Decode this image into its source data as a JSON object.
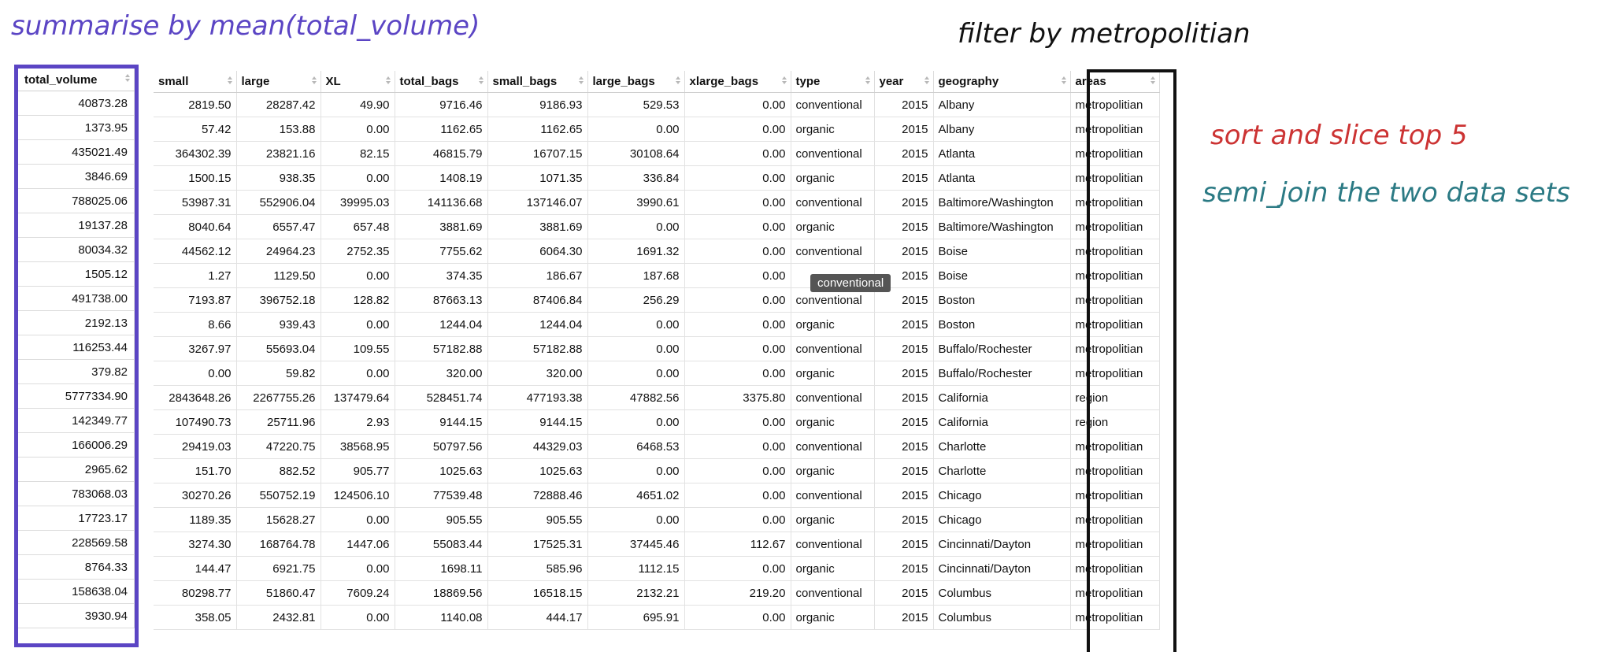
{
  "annotations": {
    "summarise": "summarise by mean(total_volume)",
    "filter": "filter by metropolitian",
    "sort": "sort and slice top 5",
    "semi_join": "semi_join the two data sets"
  },
  "colors": {
    "summarise_border": "#5b45c4",
    "areas_border": "#111111",
    "sort_note": "#cc3333",
    "semi_join_note": "#2b7a84"
  },
  "left_table": {
    "header": "total_volume",
    "rows": [
      "40873.28",
      "1373.95",
      "435021.49",
      "3846.69",
      "788025.06",
      "19137.28",
      "80034.32",
      "1505.12",
      "491738.00",
      "2192.13",
      "116253.44",
      "379.82",
      "5777334.90",
      "142349.77",
      "166006.29",
      "2965.62",
      "783068.03",
      "17723.17",
      "228569.58",
      "8764.33",
      "158638.04",
      "3930.94"
    ]
  },
  "main_table": {
    "columns": [
      "small",
      "large",
      "XL",
      "total_bags",
      "small_bags",
      "large_bags",
      "xlarge_bags",
      "type",
      "year",
      "geography",
      "areas"
    ],
    "rows": [
      [
        "2819.50",
        "28287.42",
        "49.90",
        "9716.46",
        "9186.93",
        "529.53",
        "0.00",
        "conventional",
        "2015",
        "Albany",
        "metropolitian"
      ],
      [
        "57.42",
        "153.88",
        "0.00",
        "1162.65",
        "1162.65",
        "0.00",
        "0.00",
        "organic",
        "2015",
        "Albany",
        "metropolitian"
      ],
      [
        "364302.39",
        "23821.16",
        "82.15",
        "46815.79",
        "16707.15",
        "30108.64",
        "0.00",
        "conventional",
        "2015",
        "Atlanta",
        "metropolitian"
      ],
      [
        "1500.15",
        "938.35",
        "0.00",
        "1408.19",
        "1071.35",
        "336.84",
        "0.00",
        "organic",
        "2015",
        "Atlanta",
        "metropolitian"
      ],
      [
        "53987.31",
        "552906.04",
        "39995.03",
        "141136.68",
        "137146.07",
        "3990.61",
        "0.00",
        "conventional",
        "2015",
        "Baltimore/Washington",
        "metropolitian"
      ],
      [
        "8040.64",
        "6557.47",
        "657.48",
        "3881.69",
        "3881.69",
        "0.00",
        "0.00",
        "organic",
        "2015",
        "Baltimore/Washington",
        "metropolitian"
      ],
      [
        "44562.12",
        "24964.23",
        "2752.35",
        "7755.62",
        "6064.30",
        "1691.32",
        "0.00",
        "conventional",
        "2015",
        "Boise",
        "metropolitian"
      ],
      [
        "1.27",
        "1129.50",
        "0.00",
        "374.35",
        "186.67",
        "187.68",
        "0.00",
        "",
        "2015",
        "Boise",
        "metropolitian"
      ],
      [
        "7193.87",
        "396752.18",
        "128.82",
        "87663.13",
        "87406.84",
        "256.29",
        "0.00",
        "conventional",
        "2015",
        "Boston",
        "metropolitian"
      ],
      [
        "8.66",
        "939.43",
        "0.00",
        "1244.04",
        "1244.04",
        "0.00",
        "0.00",
        "organic",
        "2015",
        "Boston",
        "metropolitian"
      ],
      [
        "3267.97",
        "55693.04",
        "109.55",
        "57182.88",
        "57182.88",
        "0.00",
        "0.00",
        "conventional",
        "2015",
        "Buffalo/Rochester",
        "metropolitian"
      ],
      [
        "0.00",
        "59.82",
        "0.00",
        "320.00",
        "320.00",
        "0.00",
        "0.00",
        "organic",
        "2015",
        "Buffalo/Rochester",
        "metropolitian"
      ],
      [
        "2843648.26",
        "2267755.26",
        "137479.64",
        "528451.74",
        "477193.38",
        "47882.56",
        "3375.80",
        "conventional",
        "2015",
        "California",
        "region"
      ],
      [
        "107490.73",
        "25711.96",
        "2.93",
        "9144.15",
        "9144.15",
        "0.00",
        "0.00",
        "organic",
        "2015",
        "California",
        "region"
      ],
      [
        "29419.03",
        "47220.75",
        "38568.95",
        "50797.56",
        "44329.03",
        "6468.53",
        "0.00",
        "conventional",
        "2015",
        "Charlotte",
        "metropolitian"
      ],
      [
        "151.70",
        "882.52",
        "905.77",
        "1025.63",
        "1025.63",
        "0.00",
        "0.00",
        "organic",
        "2015",
        "Charlotte",
        "metropolitian"
      ],
      [
        "30270.26",
        "550752.19",
        "124506.10",
        "77539.48",
        "72888.46",
        "4651.02",
        "0.00",
        "conventional",
        "2015",
        "Chicago",
        "metropolitian"
      ],
      [
        "1189.35",
        "15628.27",
        "0.00",
        "905.55",
        "905.55",
        "0.00",
        "0.00",
        "organic",
        "2015",
        "Chicago",
        "metropolitian"
      ],
      [
        "3274.30",
        "168764.78",
        "1447.06",
        "55083.44",
        "17525.31",
        "37445.46",
        "112.67",
        "conventional",
        "2015",
        "Cincinnati/Dayton",
        "metropolitian"
      ],
      [
        "144.47",
        "6921.75",
        "0.00",
        "1698.11",
        "585.96",
        "1112.15",
        "0.00",
        "organic",
        "2015",
        "Cincinnati/Dayton",
        "metropolitian"
      ],
      [
        "80298.77",
        "51860.47",
        "7609.24",
        "18869.56",
        "16518.15",
        "2132.21",
        "219.20",
        "conventional",
        "2015",
        "Columbus",
        "metropolitian"
      ],
      [
        "358.05",
        "2432.81",
        "0.00",
        "1140.08",
        "444.17",
        "695.91",
        "0.00",
        "organic",
        "2015",
        "Columbus",
        "metropolitian"
      ]
    ]
  },
  "tooltip": "conventional"
}
